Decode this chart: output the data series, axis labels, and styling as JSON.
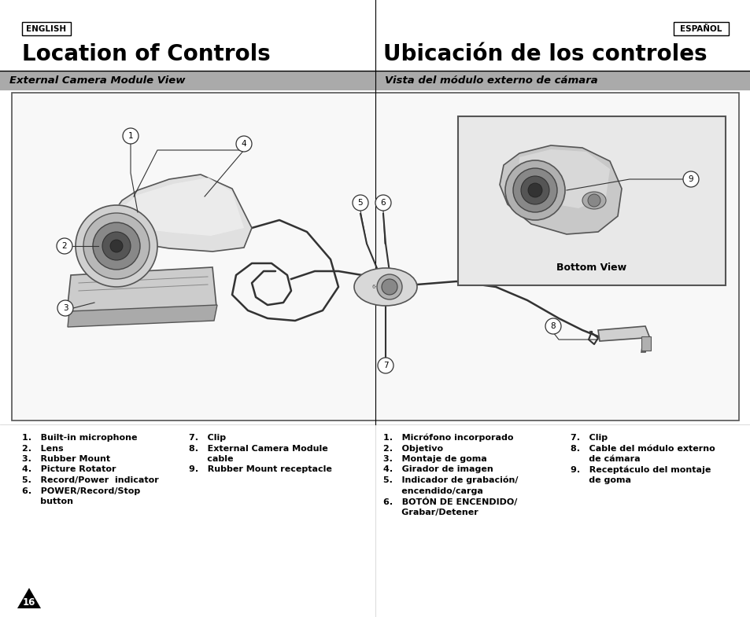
{
  "bg_color": "#ffffff",
  "page_width": 9.54,
  "page_height": 7.85,
  "header_top_label_en": "ENGLISH",
  "header_top_label_es": "ESPAÑOL",
  "title_en": "Location of Controls",
  "title_es": "Ubicación de los controles",
  "subtitle_en": "External Camera Module View",
  "subtitle_es": "Vista del módulo externo de cámara",
  "bottom_view_label": "Bottom View",
  "list_en_col1": [
    "1.   Built-in microphone",
    "2.   Lens",
    "3.   Rubber Mount",
    "4.   Picture Rotator",
    "5.   Record/Power  indicator",
    "6.   POWER/Record/Stop",
    "      button"
  ],
  "list_en_col2": [
    "7.   Clip",
    "8.   External Camera Module",
    "      cable",
    "9.   Rubber Mount receptacle"
  ],
  "list_es_col1": [
    "1.   Micrófono incorporado",
    "2.   Objetivo",
    "3.   Montaje de goma",
    "4.   Girador de imagen",
    "5.   Indicador de grabación/",
    "      encendido/carga",
    "6.   BOTÓN DE ENCENDIDO/",
    "      Grabar/Detener"
  ],
  "list_es_col2": [
    "7.   Clip",
    "8.   Cable del módulo externo",
    "      de cámara",
    "9.   Receptáculo del montaje",
    "      de goma"
  ],
  "page_number": "16"
}
